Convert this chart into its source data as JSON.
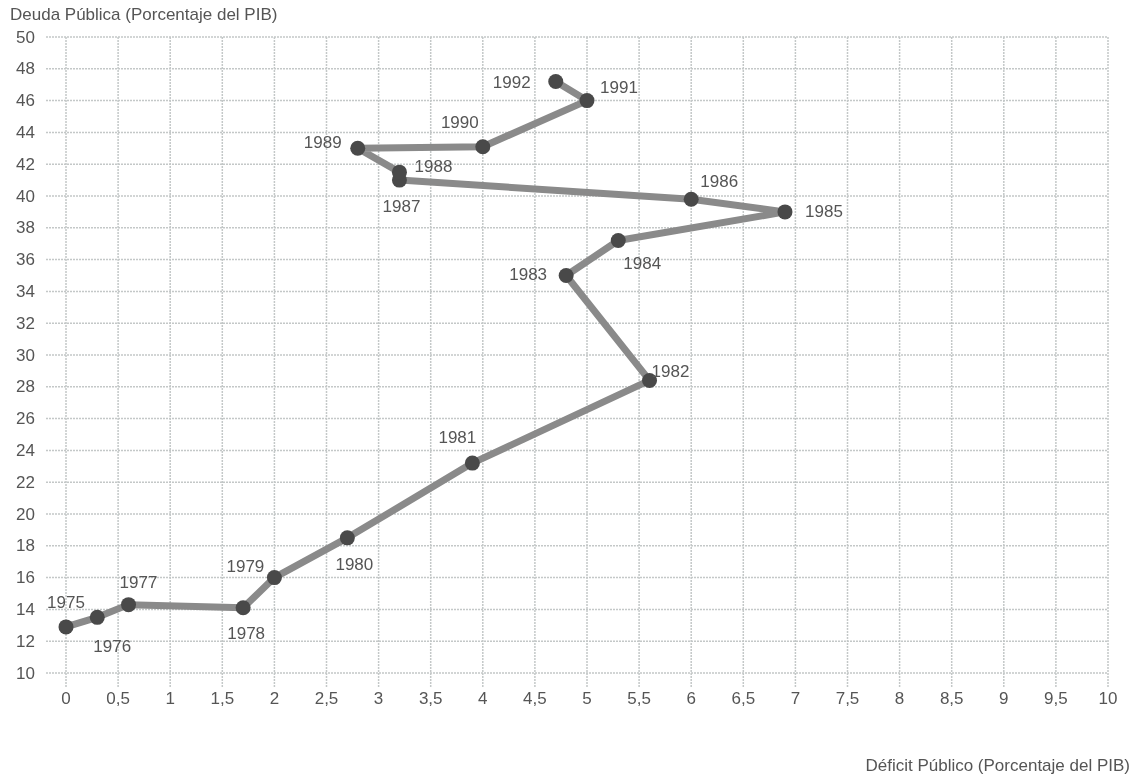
{
  "chart_data": {
    "type": "line",
    "xlabel": "Déficit Público (Porcentaje del PIB)",
    "ylabel": "Deuda Pública (Porcentaje del PIB)",
    "x": [
      0,
      0.3,
      0.6,
      1.7,
      2.0,
      2.7,
      3.9,
      5.6,
      4.8,
      5.3,
      6.9,
      6.0,
      3.2,
      3.2,
      2.8,
      4.0,
      5.0,
      4.7
    ],
    "series": [
      {
        "color": "#8a8a8a",
        "values": [
          12.9,
          13.5,
          14.3,
          14.1,
          16.0,
          18.5,
          23.2,
          28.4,
          35.0,
          37.2,
          39.0,
          39.8,
          41.0,
          41.5,
          43.0,
          43.1,
          46.0,
          47.2
        ]
      }
    ],
    "annotations": [
      {
        "text": "1975",
        "x": 0,
        "y": 12.9
      },
      {
        "text": "1976",
        "x": 0.3,
        "y": 13.5
      },
      {
        "text": "1977",
        "x": 0.6,
        "y": 14.3
      },
      {
        "text": "1978",
        "x": 1.7,
        "y": 14.1
      },
      {
        "text": "1979",
        "x": 2.0,
        "y": 16.0
      },
      {
        "text": "1980",
        "x": 2.7,
        "y": 18.5
      },
      {
        "text": "1981",
        "x": 3.9,
        "y": 23.2
      },
      {
        "text": "1982",
        "x": 5.6,
        "y": 28.4
      },
      {
        "text": "1983",
        "x": 4.8,
        "y": 35.0
      },
      {
        "text": "1984",
        "x": 5.3,
        "y": 37.2
      },
      {
        "text": "1985",
        "x": 6.9,
        "y": 39.0
      },
      {
        "text": "1986",
        "x": 6.0,
        "y": 39.8
      },
      {
        "text": "1987",
        "x": 3.2,
        "y": 41.0
      },
      {
        "text": "1988",
        "x": 3.2,
        "y": 41.5
      },
      {
        "text": "1989",
        "x": 2.8,
        "y": 43.0
      },
      {
        "text": "1990",
        "x": 4.0,
        "y": 43.1
      },
      {
        "text": "1991",
        "x": 5.0,
        "y": 46.0
      },
      {
        "text": "1992",
        "x": 4.7,
        "y": 47.2
      }
    ],
    "xlim": [
      0,
      10
    ],
    "xticks": [
      {
        "value": 0,
        "label": "0"
      },
      {
        "value": 0.5,
        "label": "0,5"
      },
      {
        "value": 1,
        "label": "1"
      },
      {
        "value": 1.5,
        "label": "1,5"
      },
      {
        "value": 2,
        "label": "2"
      },
      {
        "value": 2.5,
        "label": "2,5"
      },
      {
        "value": 3,
        "label": "3"
      },
      {
        "value": 3.5,
        "label": "3,5"
      },
      {
        "value": 4,
        "label": "4"
      },
      {
        "value": 4.5,
        "label": "4,5"
      },
      {
        "value": 5,
        "label": "5"
      },
      {
        "value": 5.5,
        "label": "5,5"
      },
      {
        "value": 6,
        "label": "6"
      },
      {
        "value": 6.5,
        "label": "6,5"
      },
      {
        "value": 7,
        "label": "7"
      },
      {
        "value": 7.5,
        "label": "7,5"
      },
      {
        "value": 8,
        "label": "8"
      },
      {
        "value": 8.5,
        "label": "8,5"
      },
      {
        "value": 9,
        "label": "9"
      },
      {
        "value": 9.5,
        "label": "9,5"
      },
      {
        "value": 10,
        "label": "10"
      }
    ],
    "ylim": [
      10,
      50
    ],
    "yticks": [
      10,
      12,
      14,
      16,
      18,
      20,
      22,
      24,
      26,
      28,
      30,
      32,
      34,
      36,
      38,
      40,
      42,
      44,
      46,
      48,
      50
    ],
    "grid": true,
    "marker": "circle",
    "line_style": "solid"
  }
}
